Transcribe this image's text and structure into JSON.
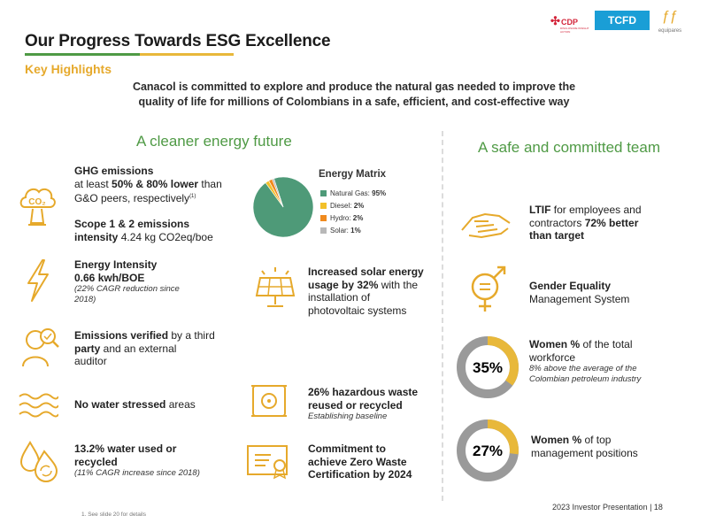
{
  "header": {
    "title": "Our Progress Towards ESG Excellence",
    "subtitle": "Key Highlights",
    "intro_line1": "Canacol is committed to explore and produce the natural gas needed to improve the",
    "intro_line2": "quality of life for millions of Colombians in a safe, efficient, and cost-effective way"
  },
  "logos": {
    "cdp": "CDP",
    "cdp_sub": "DISCLOSURE INSIGHT ACTION",
    "tcfd": "TCFD",
    "equipares": "equipares"
  },
  "left_section": {
    "title": "A cleaner energy future",
    "ghg": {
      "l1": "GHG emissions",
      "l2a": "at least ",
      "l2b": "50% & 80% lower",
      "l2c": " than",
      "l3": "G&O peers, respectively",
      "l3_sup": "(1)"
    },
    "scope": {
      "l1": "Scope 1 & 2 emissions",
      "l2a": "intensity ",
      "l2b": "4.24 kg CO2eq/boe"
    },
    "energy_intensity": {
      "l1": "Energy Intensity",
      "l2": "0.66 kwh/BOE",
      "note1": "(22% CAGR reduction since",
      "note2": "2018)"
    },
    "emissions_verified": {
      "l1a": "Emissions verified",
      "l1b": " by a third",
      "l2a": "party",
      "l2b": " and an external",
      "l3": "auditor"
    },
    "water_stress": {
      "a": "No water stressed",
      "b": " areas"
    },
    "water_used": {
      "l1": "13.2% water used or",
      "l2": "recycled",
      "note": "(11% CAGR increase since 2018)"
    },
    "energy_matrix": {
      "title": "Energy Matrix",
      "items": [
        {
          "label": "Natural Gas:",
          "value": "95%",
          "color": "#4e9a78"
        },
        {
          "label": "Diesel:",
          "value": "2%",
          "color": "#f2c02a"
        },
        {
          "label": "Hydro:",
          "value": "2%",
          "color": "#f08a1e"
        },
        {
          "label": "Solar:",
          "value": "1%",
          "color": "#b8b8b8"
        }
      ]
    },
    "solar": {
      "l1a": "Increased solar energy",
      "l2a": "usage by ",
      "l2b": "32%",
      "l2c": " with the",
      "l3": "installation of",
      "l4": "photovoltaic systems"
    },
    "waste": {
      "l1": "26% hazardous waste",
      "l2": "reused or recycled",
      "note": "Establishing baseline"
    },
    "zero_waste": {
      "l1": "Commitment to",
      "l2": "achieve Zero Waste",
      "l3": "Certification by 2024"
    }
  },
  "right_section": {
    "title": "A safe and committed team",
    "ltif": {
      "l1a": "LTIF",
      "l1b": " for employees and",
      "l2a": "contractors ",
      "l2b": "72% better",
      "l3": "than target"
    },
    "gender": {
      "l1": "Gender Equality",
      "l2": "Management System"
    },
    "women_total": {
      "pct_label": "35%",
      "pct": 0.35,
      "l1a": "Women %",
      "l1b": " of the total",
      "l2": "workforce",
      "note1": "8% above the average of the",
      "note2": "Colombian petroleum industry"
    },
    "women_mgmt": {
      "pct_label": "27%",
      "pct": 0.27,
      "l1a": "Women %",
      "l1b": " of top",
      "l2": "management positions"
    }
  },
  "footer": {
    "footnote": "1.   See slide 20 for details",
    "page": "2023 Investor Presentation | 18"
  },
  "colors": {
    "green": "#4f9a45",
    "yellow": "#e8b83a",
    "gray": "#9a9a9a"
  },
  "icons": [
    "co2-cloud-icon",
    "lightning-icon",
    "auditor-magnifier-icon",
    "water-waves-icon",
    "water-recycle-icon",
    "solar-panel-icon",
    "hazardous-waste-icon",
    "certificate-icon",
    "handshake-icon",
    "gender-equality-icon"
  ]
}
